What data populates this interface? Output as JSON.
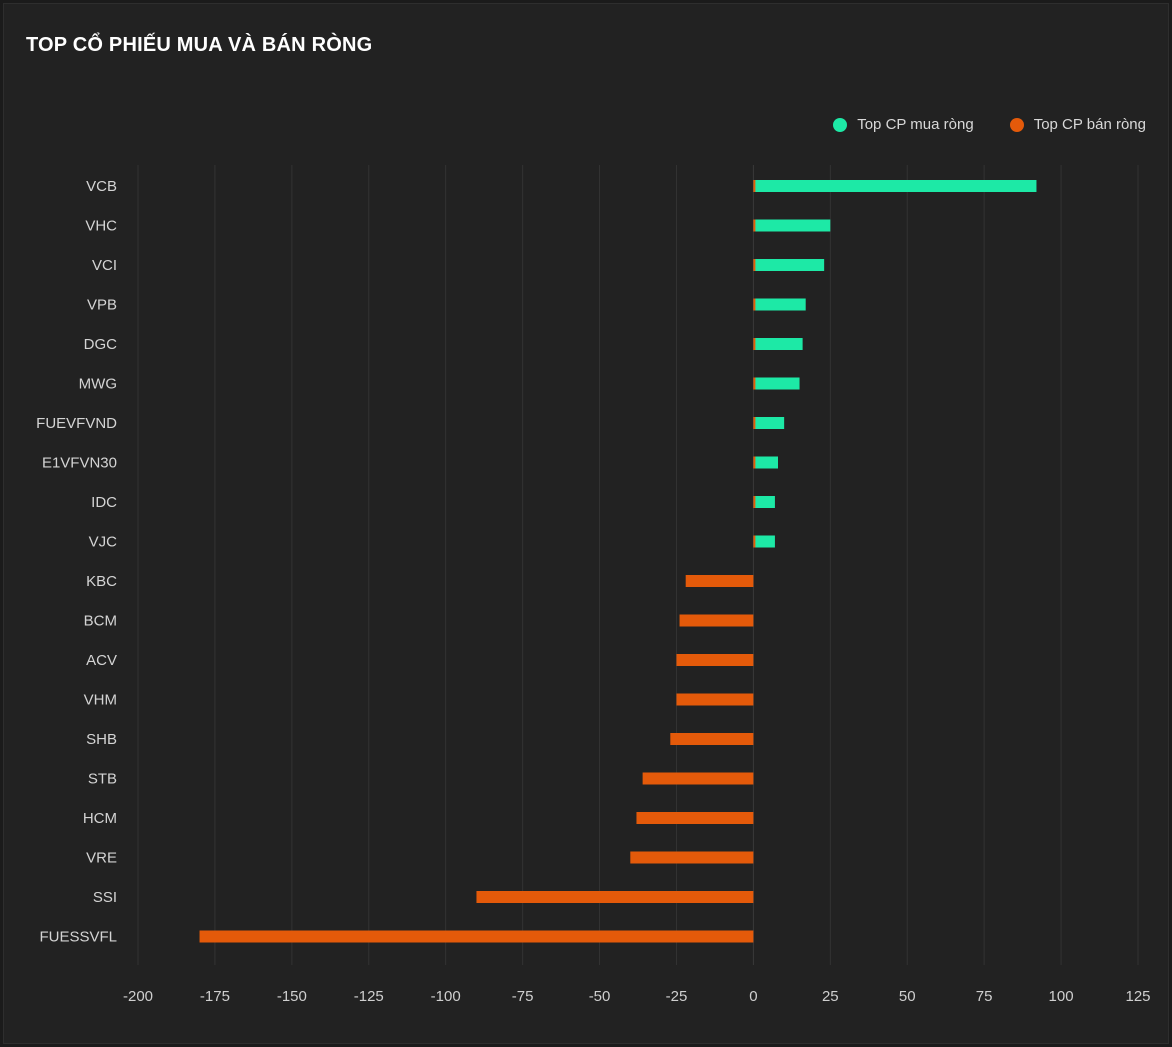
{
  "title": "TOP CỔ PHIẾU MUA VÀ BÁN RÒNG",
  "legend": [
    {
      "label": "Top CP mua ròng",
      "color": "#1de9a6"
    },
    {
      "label": "Top CP bán ròng",
      "color": "#e45a0a"
    }
  ],
  "chart_data": {
    "type": "bar",
    "orientation": "horizontal",
    "categories": [
      "VCB",
      "VHC",
      "VCI",
      "VPB",
      "DGC",
      "MWG",
      "FUEVFVND",
      "E1VFVN30",
      "IDC",
      "VJC",
      "KBC",
      "BCM",
      "ACV",
      "VHM",
      "SHB",
      "STB",
      "HCM",
      "VRE",
      "SSI",
      "FUESSVFL"
    ],
    "series": [
      {
        "name": "Top CP mua ròng",
        "color": "#1de9a6",
        "values": [
          92,
          25,
          23,
          17,
          16,
          15,
          10,
          8,
          7,
          7,
          null,
          null,
          null,
          null,
          null,
          null,
          null,
          null,
          null,
          null
        ]
      },
      {
        "name": "Top CP bán ròng",
        "color": "#e45a0a",
        "values": [
          null,
          null,
          null,
          null,
          null,
          null,
          null,
          null,
          null,
          null,
          -22,
          -24,
          -25,
          -25,
          -27,
          -36,
          -38,
          -40,
          -90,
          -180
        ]
      }
    ],
    "xlim": [
      -200,
      125
    ],
    "xticks": [
      -200,
      -175,
      -150,
      -125,
      -100,
      -75,
      -50,
      -25,
      0,
      25,
      50,
      75,
      100,
      125
    ],
    "grid": true,
    "legend_position": "top-right"
  }
}
